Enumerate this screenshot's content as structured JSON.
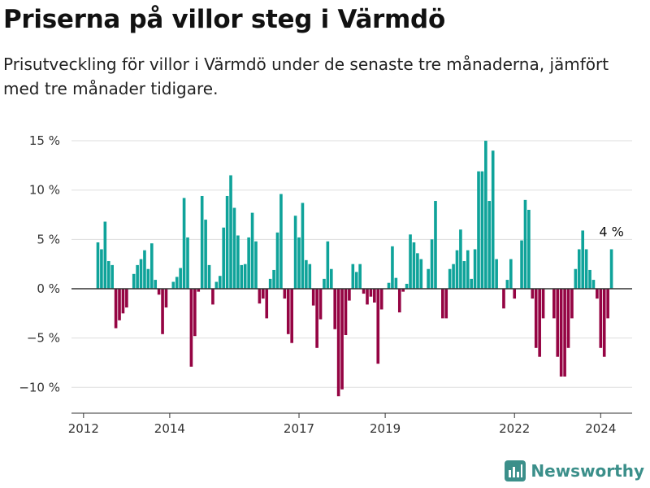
{
  "title": "Priserna på villor steg i Värmdö",
  "subtitle": "Prisutveckling för villor i Värmdö under de senaste tre månaderna, jämfört med tre månader tidigare.",
  "brand": {
    "name": "Newsworthy",
    "icon": "newsworthy-logo-icon"
  },
  "colors": {
    "positive": "#0fa39a",
    "negative": "#950443",
    "zero_line": "#333333",
    "grid": "#dddddd"
  },
  "chart_data": {
    "type": "bar",
    "x_start": "2012-05",
    "x_unit": "month",
    "ylim": [
      -12.5,
      15.2
    ],
    "y_ticks": [
      15,
      10,
      5,
      0,
      -5,
      -10
    ],
    "y_tick_labels": [
      "15 %",
      "10 %",
      "5 %",
      "0 %",
      "−5 %",
      "−10 %"
    ],
    "x_ticks": [
      "2012",
      "2014",
      "2017",
      "2019",
      "2022",
      "2024"
    ],
    "last_value_label": "4 %",
    "values": [
      4.7,
      4.0,
      6.8,
      2.8,
      2.4,
      -4.0,
      -3.2,
      -2.5,
      -1.9,
      0,
      1.5,
      2.4,
      3.0,
      3.9,
      2.0,
      4.6,
      0.9,
      -0.6,
      -4.6,
      -1.9,
      0,
      0.7,
      1.2,
      2.1,
      9.2,
      5.2,
      -7.9,
      -4.8,
      -0.3,
      9.4,
      7.0,
      2.4,
      -1.6,
      0.7,
      1.3,
      6.2,
      9.4,
      11.5,
      8.2,
      5.4,
      2.4,
      2.5,
      5.2,
      7.7,
      4.8,
      -1.5,
      -1.0,
      -3.0,
      1.0,
      1.9,
      5.7,
      9.6,
      -1.0,
      -4.6,
      -5.5,
      7.4,
      5.2,
      8.7,
      2.9,
      2.5,
      -1.7,
      -6.0,
      -3.1,
      1.0,
      4.8,
      2.0,
      -4.1,
      -10.9,
      -10.2,
      -4.7,
      -1.2,
      2.5,
      1.7,
      2.5,
      -0.5,
      -1.6,
      -0.8,
      -1.4,
      -7.6,
      -2.1,
      0,
      0.6,
      4.3,
      1.1,
      -2.4,
      -0.3,
      0.5,
      5.5,
      4.7,
      3.6,
      3.0,
      0,
      2.0,
      5.0,
      8.9,
      0,
      -3.0,
      -3.0,
      2.0,
      2.5,
      3.9,
      6.0,
      2.8,
      3.9,
      1.0,
      4.0,
      11.9,
      11.9,
      15.0,
      8.9,
      14.0,
      3.0,
      0,
      -2.0,
      0.9,
      3.0,
      -1.0,
      0,
      4.9,
      9.0,
      8.0,
      -1.0,
      -6.0,
      -6.9,
      -3.0,
      0,
      0,
      -3.0,
      -6.9,
      -8.9,
      -8.9,
      -6.0,
      -3.0,
      2.0,
      4.0,
      5.9,
      4.0,
      1.9,
      0.9,
      -1.0,
      -6.0,
      -6.9,
      -3.0,
      4.0
    ]
  }
}
